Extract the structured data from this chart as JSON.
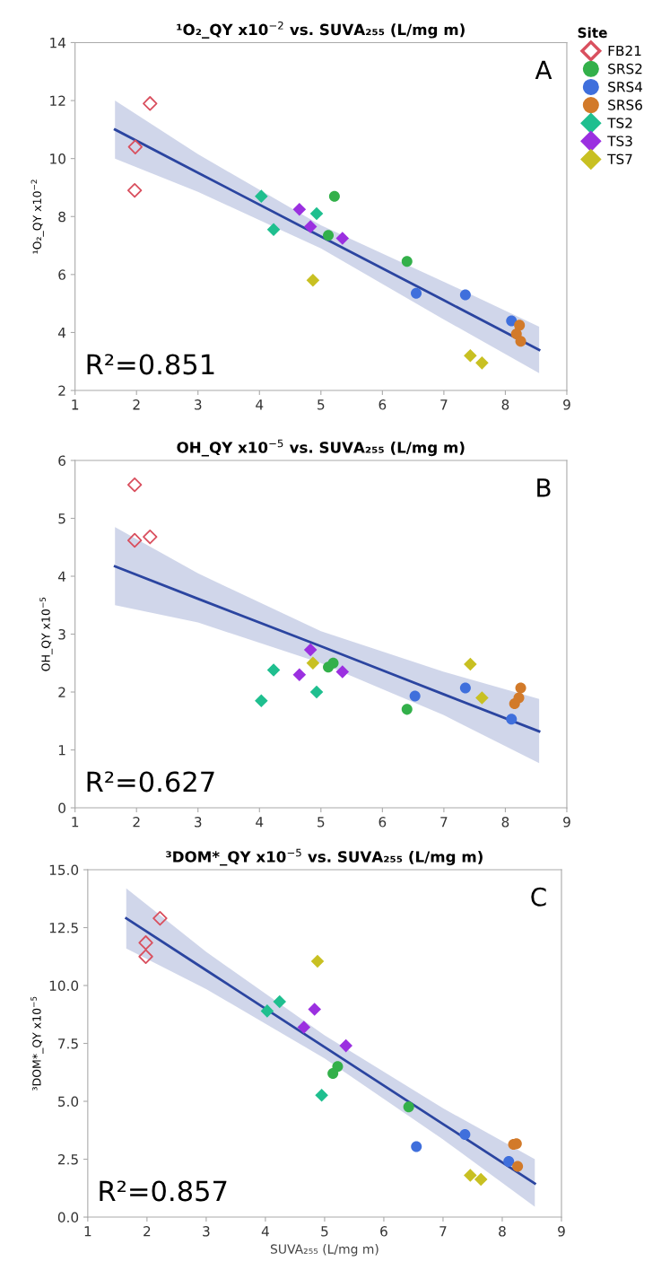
{
  "chart_data": [
    {
      "type": "scatter",
      "title": "¹O₂_QY x10$^{−2}$ vs. SUVA₂₅₅ (L/mg m)",
      "ylabel": "¹O₂_QY x10$^{−2}$",
      "legend_title": "Site",
      "legend": "top right",
      "grid": false,
      "xlim": [
        1,
        9
      ],
      "xticks": [
        1,
        2,
        3,
        4,
        5,
        6,
        7,
        8,
        9
      ],
      "ylim": [
        2,
        14
      ],
      "yticks": [
        2,
        4,
        6,
        8,
        10,
        12,
        14
      ],
      "annotations": [
        "A",
        "R²=0.851"
      ],
      "series": [
        {
          "name": "FB21",
          "color": "#d9505f",
          "marker": "diamond",
          "x": [
            1.98,
            1.97,
            2.22
          ],
          "values": [
            10.4,
            8.9,
            11.9
          ]
        },
        {
          "name": "SRS2",
          "color": "#33b04a",
          "marker": "circle",
          "x": [
            5.22,
            5.12,
            6.4
          ],
          "values": [
            8.7,
            7.35,
            6.45
          ]
        },
        {
          "name": "SRS4",
          "color": "#3f6fdc",
          "marker": "circle",
          "x": [
            6.55,
            7.35,
            8.1
          ],
          "values": [
            5.35,
            5.3,
            4.4
          ]
        },
        {
          "name": "SRS6",
          "color": "#d27a2a",
          "marker": "circle",
          "x": [
            8.23,
            8.18,
            8.25
          ],
          "values": [
            4.25,
            3.95,
            3.7
          ]
        },
        {
          "name": "TS2",
          "color": "#1fbf8f",
          "marker": "diamond",
          "x": [
            4.03,
            4.23,
            4.93
          ],
          "values": [
            8.7,
            7.55,
            8.1
          ]
        },
        {
          "name": "TS3",
          "color": "#9b30e0",
          "marker": "diamond",
          "x": [
            4.65,
            4.83,
            5.35
          ],
          "values": [
            8.25,
            7.65,
            7.25
          ]
        },
        {
          "name": "TS7",
          "color": "#c8c022",
          "marker": "diamond",
          "x": [
            4.87,
            7.43,
            7.62
          ],
          "values": [
            5.8,
            3.2,
            2.95
          ]
        },
        {
          "type": "line",
          "color": "#2b45a0",
          "marker": "none",
          "x": [
            1.65,
            3,
            5,
            7,
            8.55
          ],
          "values": [
            11.0,
            9.51,
            7.31,
            5.11,
            3.4
          ],
          "lower": [
            10.0,
            8.85,
            6.9,
            4.45,
            2.6
          ],
          "upper": [
            12.0,
            10.15,
            7.7,
            5.75,
            4.2
          ]
        }
      ]
    },
    {
      "type": "scatter",
      "title": "OH_QY x10$^{−5}$ vs. SUVA₂₅₅ (L/mg m)",
      "ylabel": "OH_QY x10$^{−5}$",
      "grid": false,
      "xlim": [
        1,
        9
      ],
      "xticks": [
        1,
        2,
        3,
        4,
        5,
        6,
        7,
        8,
        9
      ],
      "ylim": [
        0,
        6
      ],
      "yticks": [
        0,
        1,
        2,
        3,
        4,
        5,
        6
      ],
      "annotations": [
        "B",
        "R²=0.627"
      ],
      "series": [
        {
          "color": "#d9505f",
          "marker": "diamond",
          "x": [
            1.97,
            1.97,
            2.22
          ],
          "values": [
            5.58,
            4.62,
            4.68
          ]
        },
        {
          "color": "#33b04a",
          "marker": "circle",
          "x": [
            5.12,
            5.2,
            6.4
          ],
          "values": [
            2.43,
            2.5,
            1.7
          ]
        },
        {
          "color": "#3f6fdc",
          "marker": "circle",
          "x": [
            6.53,
            7.35,
            8.1
          ],
          "values": [
            1.93,
            2.07,
            1.53
          ]
        },
        {
          "color": "#d27a2a",
          "marker": "circle",
          "x": [
            8.25,
            8.22,
            8.15
          ],
          "values": [
            2.07,
            1.9,
            1.8
          ]
        },
        {
          "color": "#1fbf8f",
          "marker": "diamond",
          "x": [
            4.03,
            4.23,
            4.93
          ],
          "values": [
            1.85,
            2.38,
            2.0
          ]
        },
        {
          "color": "#9b30e0",
          "marker": "diamond",
          "x": [
            4.65,
            4.83,
            5.35
          ],
          "values": [
            2.3,
            2.73,
            2.35
          ]
        },
        {
          "color": "#c8c022",
          "marker": "diamond",
          "x": [
            4.87,
            7.43,
            7.62
          ],
          "values": [
            2.5,
            2.48,
            1.9
          ]
        },
        {
          "type": "line",
          "color": "#2b45a0",
          "marker": "none",
          "x": [
            1.65,
            3,
            5,
            7,
            8.55
          ],
          "values": [
            4.17,
            3.61,
            2.79,
            1.96,
            1.32
          ],
          "lower": [
            3.5,
            3.2,
            2.5,
            1.6,
            0.77
          ],
          "upper": [
            4.85,
            4.05,
            3.05,
            2.35,
            1.88
          ]
        }
      ]
    },
    {
      "type": "scatter",
      "title": "³DOM*_QY x10$^{−5}$ vs. SUVA₂₅₅ (L/mg m)",
      "ylabel": "³DOM*_QY x10$^{−5}$",
      "xlabel": "SUVA₂₅₅ (L/mg m)",
      "grid": false,
      "xlim": [
        1,
        9
      ],
      "xticks": [
        1,
        2,
        3,
        4,
        5,
        6,
        7,
        8,
        9
      ],
      "ylim": [
        0,
        15
      ],
      "yticks": [
        {
          "value": 0,
          "label": "0.0"
        },
        {
          "value": 2.5,
          "label": "2.5"
        },
        {
          "value": 5,
          "label": "5.0"
        },
        {
          "value": 7.5,
          "label": "7.5"
        },
        {
          "value": 10,
          "label": "10.0"
        },
        {
          "value": 12.5,
          "label": "12.5"
        },
        {
          "value": 15,
          "label": "15.0"
        }
      ],
      "annotations": [
        "C",
        "R²=0.857"
      ],
      "series": [
        {
          "color": "#d9505f",
          "marker": "diamond",
          "x": [
            2.22,
            1.98,
            1.98
          ],
          "values": [
            12.9,
            11.85,
            11.25
          ]
        },
        {
          "color": "#33b04a",
          "marker": "circle",
          "x": [
            5.22,
            5.14,
            6.42
          ],
          "values": [
            6.5,
            6.2,
            4.76
          ]
        },
        {
          "color": "#3f6fdc",
          "marker": "circle",
          "x": [
            6.55,
            7.37,
            8.11
          ],
          "values": [
            3.04,
            3.57,
            2.4
          ]
        },
        {
          "color": "#d27a2a",
          "marker": "circle",
          "x": [
            8.19,
            8.24,
            8.26
          ],
          "values": [
            3.14,
            3.17,
            2.19
          ]
        },
        {
          "color": "#1fbf8f",
          "marker": "diamond",
          "x": [
            4.24,
            4.03,
            4.95
          ],
          "values": [
            9.3,
            8.9,
            5.26
          ]
        },
        {
          "color": "#9b30e0",
          "marker": "diamond",
          "x": [
            4.83,
            4.65,
            5.36
          ],
          "values": [
            8.97,
            8.2,
            7.4
          ]
        },
        {
          "color": "#c8c022",
          "marker": "diamond",
          "x": [
            4.88,
            7.46,
            7.64
          ],
          "values": [
            11.05,
            1.8,
            1.63
          ]
        },
        {
          "type": "line",
          "color": "#2b45a0",
          "marker": "none",
          "x": [
            1.65,
            3,
            5,
            7,
            8.55
          ],
          "values": [
            12.9,
            10.66,
            7.34,
            4.02,
            1.45
          ],
          "lower": [
            11.6,
            9.85,
            6.85,
            3.35,
            0.45
          ],
          "upper": [
            14.2,
            11.45,
            7.85,
            4.7,
            2.5
          ]
        }
      ]
    }
  ]
}
